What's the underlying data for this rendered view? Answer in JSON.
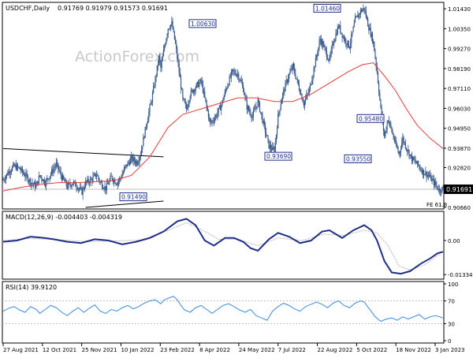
{
  "header": {
    "symbol_text": "USDCHF,Daily",
    "ohlc_text": "0.91769 0.91979 0.91573 0.91691"
  },
  "watermark": "ActionForex.com",
  "colors": {
    "candle": "#3a5a8c",
    "ema": "#e23a3a",
    "macd_line": "#1f2f8a",
    "macd_signal": "#c8b4b4",
    "rsi": "#3a8de0",
    "frame": "#000000",
    "grid_level": "#bfbfbf"
  },
  "chart_data": [
    {
      "type": "candlestick",
      "name": "price",
      "ylim": [
        0.9066,
        1.0165
      ],
      "y_ticks": [
        "1.01430",
        "1.00350",
        "0.99270",
        "0.98190",
        "0.97110",
        "0.96030",
        "0.94950",
        "0.93870",
        "0.92820",
        "0.91691",
        "0.90660"
      ],
      "current_price": "0.91691",
      "fib_label": "FE 61.8",
      "callouts": [
        {
          "text": "1.00630",
          "value": 1.0063
        },
        {
          "text": "1.01460",
          "value": 1.0146
        },
        {
          "text": "0.93690",
          "value": 0.9369
        },
        {
          "text": "0.95480",
          "value": 0.9548
        },
        {
          "text": "0.93550",
          "value": 0.9355
        },
        {
          "text": "0.91490",
          "value": 0.9149
        }
      ],
      "close_path": [
        [
          0,
          0.9215
        ],
        [
          6,
          0.926
        ],
        [
          12,
          0.929
        ],
        [
          18,
          0.9275
        ],
        [
          24,
          0.924
        ],
        [
          30,
          0.9205
        ],
        [
          36,
          0.918
        ],
        [
          40,
          0.924
        ],
        [
          46,
          0.92
        ],
        [
          52,
          0.925
        ],
        [
          58,
          0.93
        ],
        [
          64,
          0.923
        ],
        [
          70,
          0.918
        ],
        [
          76,
          0.92
        ],
        [
          80,
          0.9185
        ],
        [
          86,
          0.915
        ],
        [
          90,
          0.92
        ],
        [
          96,
          0.9215
        ],
        [
          102,
          0.9245
        ],
        [
          106,
          0.92
        ],
        [
          112,
          0.917
        ],
        [
          118,
          0.923
        ],
        [
          124,
          0.92
        ],
        [
          128,
          0.9225
        ],
        [
          134,
          0.929
        ],
        [
          140,
          0.933
        ],
        [
          146,
          0.931
        ],
        [
          150,
          0.936
        ],
        [
          154,
          0.946
        ],
        [
          158,
          0.956
        ],
        [
          162,
          0.965
        ],
        [
          166,
          0.976
        ],
        [
          170,
          0.988
        ],
        [
          172,
          0.982
        ],
        [
          176,
          0.994
        ],
        [
          180,
          1.004
        ],
        [
          184,
          1.0063
        ],
        [
          188,
          0.995
        ],
        [
          192,
          0.98
        ],
        [
          196,
          0.965
        ],
        [
          200,
          0.96
        ],
        [
          204,
          0.968
        ],
        [
          210,
          0.972
        ],
        [
          216,
          0.975
        ],
        [
          222,
          0.961
        ],
        [
          226,
          0.952
        ],
        [
          232,
          0.956
        ],
        [
          238,
          0.962
        ],
        [
          244,
          0.972
        ],
        [
          250,
          0.98
        ],
        [
          256,
          0.979
        ],
        [
          262,
          0.971
        ],
        [
          266,
          0.961
        ],
        [
          272,
          0.956
        ],
        [
          278,
          0.964
        ],
        [
          284,
          0.952
        ],
        [
          290,
          0.94
        ],
        [
          296,
          0.9369
        ],
        [
          300,
          0.956
        ],
        [
          304,
          0.966
        ],
        [
          310,
          0.976
        ],
        [
          316,
          0.983
        ],
        [
          322,
          0.973
        ],
        [
          328,
          0.963
        ],
        [
          334,
          0.97
        ],
        [
          340,
          0.984
        ],
        [
          346,
          0.998
        ],
        [
          352,
          0.991
        ],
        [
          356,
          0.986
        ],
        [
          360,
          0.996
        ],
        [
          366,
          1.005
        ],
        [
          372,
          0.998
        ],
        [
          378,
          0.994
        ],
        [
          384,
          1.008
        ],
        [
          390,
          1.013
        ],
        [
          394,
          1.0146
        ],
        [
          398,
          1.006
        ],
        [
          404,
          0.996
        ],
        [
          408,
          0.98
        ],
        [
          412,
          0.96
        ],
        [
          416,
          0.945
        ],
        [
          420,
          0.9548
        ],
        [
          424,
          0.948
        ],
        [
          428,
          0.941
        ],
        [
          432,
          0.9355
        ],
        [
          436,
          0.944
        ],
        [
          440,
          0.939
        ],
        [
          446,
          0.933
        ],
        [
          452,
          0.93
        ],
        [
          458,
          0.926
        ],
        [
          464,
          0.924
        ],
        [
          470,
          0.92
        ],
        [
          476,
          0.916
        ],
        [
          480,
          0.9169
        ]
      ],
      "ema_path": [
        [
          0,
          0.9155
        ],
        [
          20,
          0.9175
        ],
        [
          40,
          0.919
        ],
        [
          60,
          0.92
        ],
        [
          80,
          0.92
        ],
        [
          100,
          0.9205
        ],
        [
          120,
          0.921
        ],
        [
          140,
          0.924
        ],
        [
          160,
          0.934
        ],
        [
          180,
          0.95
        ],
        [
          196,
          0.957
        ],
        [
          216,
          0.96
        ],
        [
          236,
          0.963
        ],
        [
          256,
          0.966
        ],
        [
          276,
          0.966
        ],
        [
          296,
          0.964
        ],
        [
          316,
          0.964
        ],
        [
          336,
          0.968
        ],
        [
          356,
          0.974
        ],
        [
          376,
          0.98
        ],
        [
          392,
          0.984
        ],
        [
          404,
          0.985
        ],
        [
          416,
          0.978
        ],
        [
          428,
          0.97
        ],
        [
          440,
          0.96
        ],
        [
          452,
          0.951
        ],
        [
          466,
          0.944
        ],
        [
          480,
          0.9385
        ]
      ],
      "trendlines": [
        {
          "from": [
            0,
            0.9385
          ],
          "to": [
            175,
            0.934
          ]
        },
        {
          "from": [
            90,
            0.9066
          ],
          "to": [
            175,
            0.91
          ]
        }
      ]
    },
    {
      "type": "line",
      "name": "MACD",
      "label": "MACD(12,26,9) -0.004403 -0.004319",
      "ylim": [
        -0.0145,
        0.0105
      ],
      "y_ticks": [
        "0.00",
        "-0.01334"
      ],
      "series": [
        {
          "role": "macd",
          "values": [
            [
              0,
              -0.0005
            ],
            [
              15,
              0.0
            ],
            [
              30,
              0.0015
            ],
            [
              45,
              0.001
            ],
            [
              55,
              0.0005
            ],
            [
              70,
              -0.0005
            ],
            [
              85,
              -0.001
            ],
            [
              100,
              0.0005
            ],
            [
              115,
              0.0
            ],
            [
              130,
              -0.0015
            ],
            [
              145,
              -0.0005
            ],
            [
              160,
              0.001
            ],
            [
              175,
              0.0035
            ],
            [
              190,
              0.0075
            ],
            [
              200,
              0.0085
            ],
            [
              210,
              0.006
            ],
            [
              220,
              0.0
            ],
            [
              230,
              -0.002
            ],
            [
              242,
              0.001
            ],
            [
              252,
              0.001
            ],
            [
              262,
              -0.0005
            ],
            [
              270,
              -0.003
            ],
            [
              278,
              -0.004
            ],
            [
              290,
              0.0005
            ],
            [
              300,
              0.003
            ],
            [
              312,
              0.0015
            ],
            [
              324,
              -0.001
            ],
            [
              336,
              0.0
            ],
            [
              348,
              0.0035
            ],
            [
              356,
              0.004
            ],
            [
              370,
              0.001
            ],
            [
              382,
              0.004
            ],
            [
              394,
              0.006
            ],
            [
              402,
              0.004
            ],
            [
              408,
              0.0
            ],
            [
              416,
              -0.008
            ],
            [
              424,
              -0.0125
            ],
            [
              434,
              -0.013
            ],
            [
              444,
              -0.012
            ],
            [
              456,
              -0.009
            ],
            [
              466,
              -0.007
            ],
            [
              474,
              -0.005
            ],
            [
              480,
              -0.0044
            ]
          ]
        },
        {
          "role": "signal",
          "values": [
            [
              0,
              0.0
            ],
            [
              30,
              0.0008
            ],
            [
              60,
              0.0003
            ],
            [
              90,
              -0.0004
            ],
            [
              120,
              -0.0002
            ],
            [
              150,
              0.0002
            ],
            [
              180,
              0.004
            ],
            [
              200,
              0.007
            ],
            [
              218,
              0.004
            ],
            [
              235,
              0.0005
            ],
            [
              255,
              0.0005
            ],
            [
              278,
              -0.002
            ],
            [
              300,
              0.001
            ],
            [
              326,
              0.0
            ],
            [
              350,
              0.0025
            ],
            [
              372,
              0.002
            ],
            [
              394,
              0.004
            ],
            [
              408,
              0.003
            ],
            [
              420,
              -0.002
            ],
            [
              432,
              -0.01
            ],
            [
              444,
              -0.0115
            ],
            [
              460,
              -0.0095
            ],
            [
              480,
              -0.0043
            ]
          ]
        }
      ]
    },
    {
      "type": "line",
      "name": "RSI",
      "label": "RSI(14) 39.9120",
      "ylim": [
        0,
        100
      ],
      "y_ticks": [
        "100",
        "70",
        "30",
        "0"
      ],
      "values": [
        [
          0,
          52
        ],
        [
          6,
          57
        ],
        [
          12,
          60
        ],
        [
          18,
          54
        ],
        [
          24,
          50
        ],
        [
          30,
          60
        ],
        [
          36,
          55
        ],
        [
          40,
          48
        ],
        [
          46,
          55
        ],
        [
          52,
          62
        ],
        [
          58,
          58
        ],
        [
          64,
          50
        ],
        [
          70,
          44
        ],
        [
          76,
          52
        ],
        [
          82,
          58
        ],
        [
          88,
          50
        ],
        [
          94,
          57
        ],
        [
          100,
          63
        ],
        [
          106,
          52
        ],
        [
          112,
          48
        ],
        [
          118,
          55
        ],
        [
          124,
          52
        ],
        [
          130,
          58
        ],
        [
          136,
          62
        ],
        [
          142,
          56
        ],
        [
          148,
          60
        ],
        [
          154,
          66
        ],
        [
          160,
          70
        ],
        [
          166,
          72
        ],
        [
          172,
          65
        ],
        [
          176,
          72
        ],
        [
          182,
          76
        ],
        [
          186,
          78
        ],
        [
          190,
          72
        ],
        [
          194,
          62
        ],
        [
          198,
          54
        ],
        [
          204,
          50
        ],
        [
          210,
          58
        ],
        [
          216,
          62
        ],
        [
          222,
          55
        ],
        [
          228,
          48
        ],
        [
          234,
          55
        ],
        [
          240,
          62
        ],
        [
          246,
          65
        ],
        [
          252,
          60
        ],
        [
          258,
          54
        ],
        [
          264,
          50
        ],
        [
          270,
          55
        ],
        [
          276,
          44
        ],
        [
          282,
          40
        ],
        [
          288,
          36
        ],
        [
          294,
          52
        ],
        [
          300,
          60
        ],
        [
          306,
          66
        ],
        [
          312,
          62
        ],
        [
          318,
          56
        ],
        [
          324,
          52
        ],
        [
          330,
          60
        ],
        [
          336,
          64
        ],
        [
          342,
          68
        ],
        [
          348,
          64
        ],
        [
          354,
          58
        ],
        [
          360,
          66
        ],
        [
          366,
          70
        ],
        [
          372,
          62
        ],
        [
          378,
          58
        ],
        [
          384,
          66
        ],
        [
          390,
          70
        ],
        [
          394,
          68
        ],
        [
          400,
          55
        ],
        [
          406,
          42
        ],
        [
          412,
          34
        ],
        [
          418,
          38
        ],
        [
          424,
          40
        ],
        [
          430,
          36
        ],
        [
          436,
          42
        ],
        [
          442,
          38
        ],
        [
          448,
          42
        ],
        [
          454,
          46
        ],
        [
          460,
          38
        ],
        [
          466,
          42
        ],
        [
          472,
          44
        ],
        [
          480,
          40
        ]
      ]
    }
  ],
  "x_axis_labels": [
    "27 Aug 2021",
    "12 Oct 2021",
    "25 Nov 2021",
    "10 Jan 2022",
    "23 Feb 2022",
    "8 Apr 2022",
    "24 May 2022",
    "7 Jul 2022",
    "22 Aug 2022",
    "5 Oct 2022",
    "18 Nov 2022",
    "3 Jan 2023"
  ]
}
